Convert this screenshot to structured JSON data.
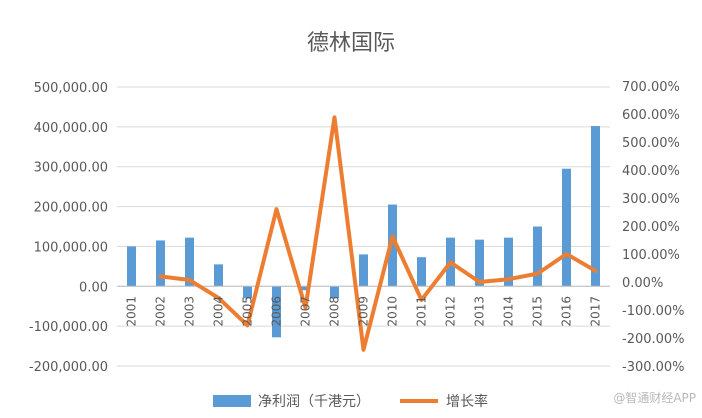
{
  "chart_data": {
    "type": "bar",
    "title": "德林国际",
    "categories": [
      "2001",
      "2002",
      "2003",
      "2004",
      "2005",
      "2006",
      "2007",
      "2008",
      "2009",
      "2010",
      "2011",
      "2012",
      "2013",
      "2014",
      "2015",
      "2016",
      "2017"
    ],
    "series": [
      {
        "name": "净利润（千港元）",
        "type": "bar",
        "axis": "left",
        "color": "#5B9BD5",
        "values": [
          100000,
          115000,
          122000,
          55000,
          -30000,
          -128000,
          -10000,
          -30000,
          80000,
          205000,
          73000,
          122000,
          117000,
          122000,
          150000,
          295000,
          402000
        ]
      },
      {
        "name": "增长率",
        "type": "line",
        "axis": "right",
        "color": "#ED7D31",
        "values": [
          null,
          20,
          7,
          -57,
          -155,
          260,
          -92,
          588,
          -242,
          163,
          -64,
          70,
          0,
          10,
          30,
          100,
          40
        ]
      }
    ],
    "y_left": {
      "min": -200000,
      "max": 500000,
      "step": 100000,
      "ticks": [
        "500,000.00",
        "400,000.00",
        "300,000.00",
        "200,000.00",
        "100,000.00",
        "0.00",
        "-100,000.00",
        "-200,000.00"
      ]
    },
    "y_right": {
      "min": -300,
      "max": 700,
      "step": 100,
      "ticks": [
        "700.00%",
        "600.00%",
        "500.00%",
        "400.00%",
        "300.00%",
        "200.00%",
        "100.00%",
        "0.00%",
        "-100.00%",
        "-200.00%",
        "-300.00%"
      ]
    },
    "grid": true,
    "legend_position": "bottom"
  },
  "watermark": "@智通财经APP"
}
